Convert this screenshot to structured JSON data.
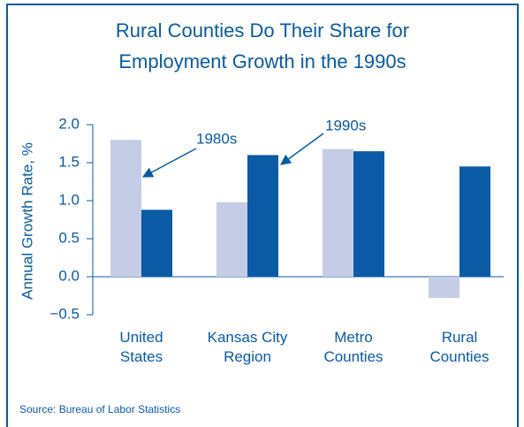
{
  "chart_data": {
    "type": "bar",
    "title": [
      "Rural Counties Do Their Share for",
      "Employment Growth in the 1990s"
    ],
    "y_label": "Annual Growth Rate, %",
    "source": "Source:  Bureau of Labor Statistics",
    "categories": [
      "United\nStates",
      "Kansas City\nRegion",
      "Metro\nCounties",
      "Rural\nCounties"
    ],
    "series": [
      {
        "name": "1980s",
        "color": "#c5cde6",
        "values": [
          1.8,
          0.98,
          1.68,
          -0.28
        ]
      },
      {
        "name": "1990s",
        "color": "#0a5aa6",
        "values": [
          0.88,
          1.6,
          1.65,
          1.45
        ]
      }
    ],
    "ylim": [
      -0.5,
      2.0
    ],
    "yticks": [
      {
        "value": -0.5,
        "label": "−0.5"
      },
      {
        "value": 0,
        "label": "0.0"
      },
      {
        "value": 0.5,
        "label": "0.5"
      },
      {
        "value": 1,
        "label": "1.0"
      },
      {
        "value": 1.5,
        "label": "1.5"
      },
      {
        "value": 2,
        "label": "2.0"
      }
    ]
  }
}
